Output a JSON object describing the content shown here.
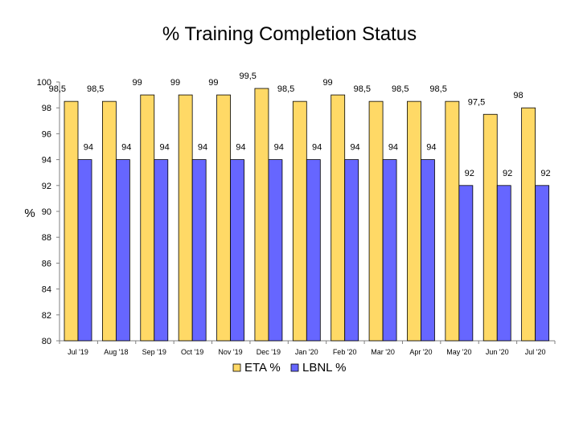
{
  "chart_data": {
    "type": "bar",
    "title": "% Training Completion Status",
    "xlabel": "",
    "ylabel": "%",
    "ylim": [
      80,
      100
    ],
    "yticks": [
      80,
      82,
      84,
      86,
      88,
      90,
      92,
      94,
      96,
      98,
      100
    ],
    "grid": false,
    "legend_position": "bottom",
    "categories": [
      "Jul '19",
      "Aug '18",
      "Sep '19",
      "Oct '19",
      "Nov '19",
      "Dec '19",
      "Jan '20",
      "Feb '20",
      "Mar '20",
      "Apr '20",
      "May '20",
      "Jun '20",
      "Jul '20"
    ],
    "series": [
      {
        "name": "ETA %",
        "color": "#FFD966",
        "values": [
          98.5,
          98.5,
          99,
          99,
          99,
          99.5,
          98.5,
          99,
          98.5,
          98.5,
          98.5,
          97.5,
          98
        ],
        "labels": [
          "98,5",
          "98,5",
          "99",
          "99",
          "99",
          "99,5",
          "98,5",
          "99",
          "98,5",
          "98,5",
          "98,5",
          "97,5",
          "98"
        ]
      },
      {
        "name": "LBNL %",
        "color": "#6666FF",
        "values": [
          94,
          94,
          94,
          94,
          94,
          94,
          94,
          94,
          94,
          94,
          92,
          92,
          92
        ],
        "labels": [
          "94",
          "94",
          "94",
          "94",
          "94",
          "94",
          "94",
          "94",
          "94",
          "94",
          "92",
          "92",
          "92"
        ]
      }
    ]
  }
}
